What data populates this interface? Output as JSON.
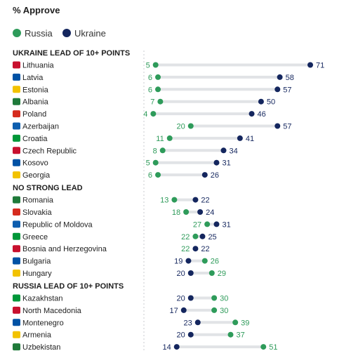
{
  "chart_data": {
    "type": "dumbbell",
    "subtitle": "% Approve",
    "legend": [
      {
        "name": "Russia",
        "color": "#2e9b5a"
      },
      {
        "name": "Ukraine",
        "color": "#14265e"
      }
    ],
    "xlim": [
      0,
      75
    ],
    "groups": [
      {
        "title": "UKRAINE LEAD OF 10+ POINTS",
        "rows": [
          {
            "country": "Lithuania",
            "russia": 5,
            "ukraine": 71
          },
          {
            "country": "Latvia",
            "russia": 6,
            "ukraine": 58
          },
          {
            "country": "Estonia",
            "russia": 6,
            "ukraine": 57
          },
          {
            "country": "Albania",
            "russia": 7,
            "ukraine": 50
          },
          {
            "country": "Poland",
            "russia": 4,
            "ukraine": 46
          },
          {
            "country": "Azerbaijan",
            "russia": 20,
            "ukraine": 57
          },
          {
            "country": "Croatia",
            "russia": 11,
            "ukraine": 41
          },
          {
            "country": "Czech Republic",
            "russia": 8,
            "ukraine": 34
          },
          {
            "country": "Kosovo",
            "russia": 5,
            "ukraine": 31
          },
          {
            "country": "Georgia",
            "russia": 6,
            "ukraine": 26
          }
        ]
      },
      {
        "title": "NO STRONG LEAD",
        "rows": [
          {
            "country": "Romania",
            "russia": 13,
            "ukraine": 22
          },
          {
            "country": "Slovakia",
            "russia": 18,
            "ukraine": 24
          },
          {
            "country": "Republic of Moldova",
            "russia": 27,
            "ukraine": 31
          },
          {
            "country": "Greece",
            "russia": 22,
            "ukraine": 25
          },
          {
            "country": "Bosnia and Herzegovina",
            "russia": 22,
            "ukraine": 22
          },
          {
            "country": "Bulgaria",
            "russia": 26,
            "ukraine": 19
          },
          {
            "country": "Hungary",
            "russia": 29,
            "ukraine": 20
          }
        ]
      },
      {
        "title": "RUSSIA LEAD OF 10+ POINTS",
        "rows": [
          {
            "country": "Kazakhstan",
            "russia": 30,
            "ukraine": 20
          },
          {
            "country": "North Macedonia",
            "russia": 30,
            "ukraine": 17
          },
          {
            "country": "Montenegro",
            "russia": 39,
            "ukraine": 23
          },
          {
            "country": "Armenia",
            "russia": 37,
            "ukraine": 20
          },
          {
            "country": "Uzbekistan",
            "russia": 51,
            "ukraine": 14
          }
        ]
      }
    ]
  }
}
